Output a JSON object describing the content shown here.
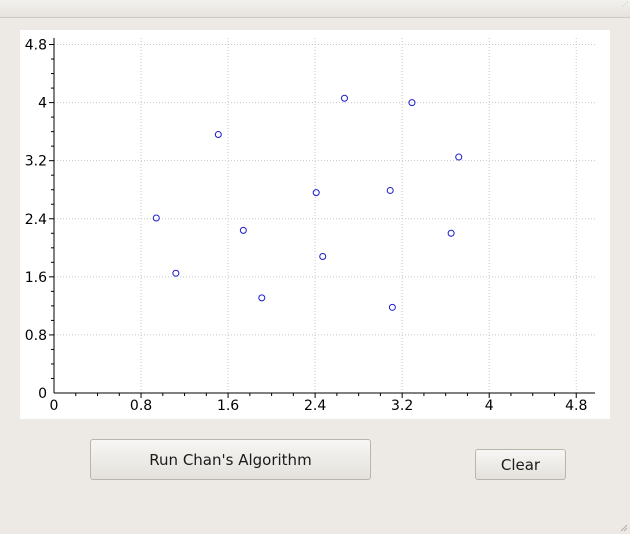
{
  "chart_data": {
    "type": "scatter",
    "x": [
      0.94,
      1.12,
      1.51,
      1.74,
      1.91,
      2.41,
      2.47,
      2.67,
      3.09,
      3.11,
      3.29,
      3.65,
      3.72
    ],
    "y": [
      2.41,
      1.65,
      3.56,
      2.24,
      1.31,
      2.76,
      1.88,
      4.06,
      2.79,
      1.18,
      4.0,
      2.2,
      3.25
    ],
    "xlim": [
      0,
      5.0
    ],
    "ylim": [
      0,
      5.0
    ],
    "xticks": [
      "0",
      "0.8",
      "1.6",
      "2.4",
      "3.2",
      "4",
      "4.8"
    ],
    "yticks": [
      "0",
      "0.8",
      "1.6",
      "2.4",
      "3.2",
      "4",
      "4.8"
    ],
    "tick_values": [
      0,
      0.8,
      1.6,
      2.4,
      3.2,
      4.0,
      4.8
    ],
    "grid": true,
    "marker_color": "#1a1acc",
    "grid_color": "#c8c8c8"
  },
  "buttons": {
    "run_label": "Run Chan's Algorithm",
    "clear_label": "Clear"
  }
}
